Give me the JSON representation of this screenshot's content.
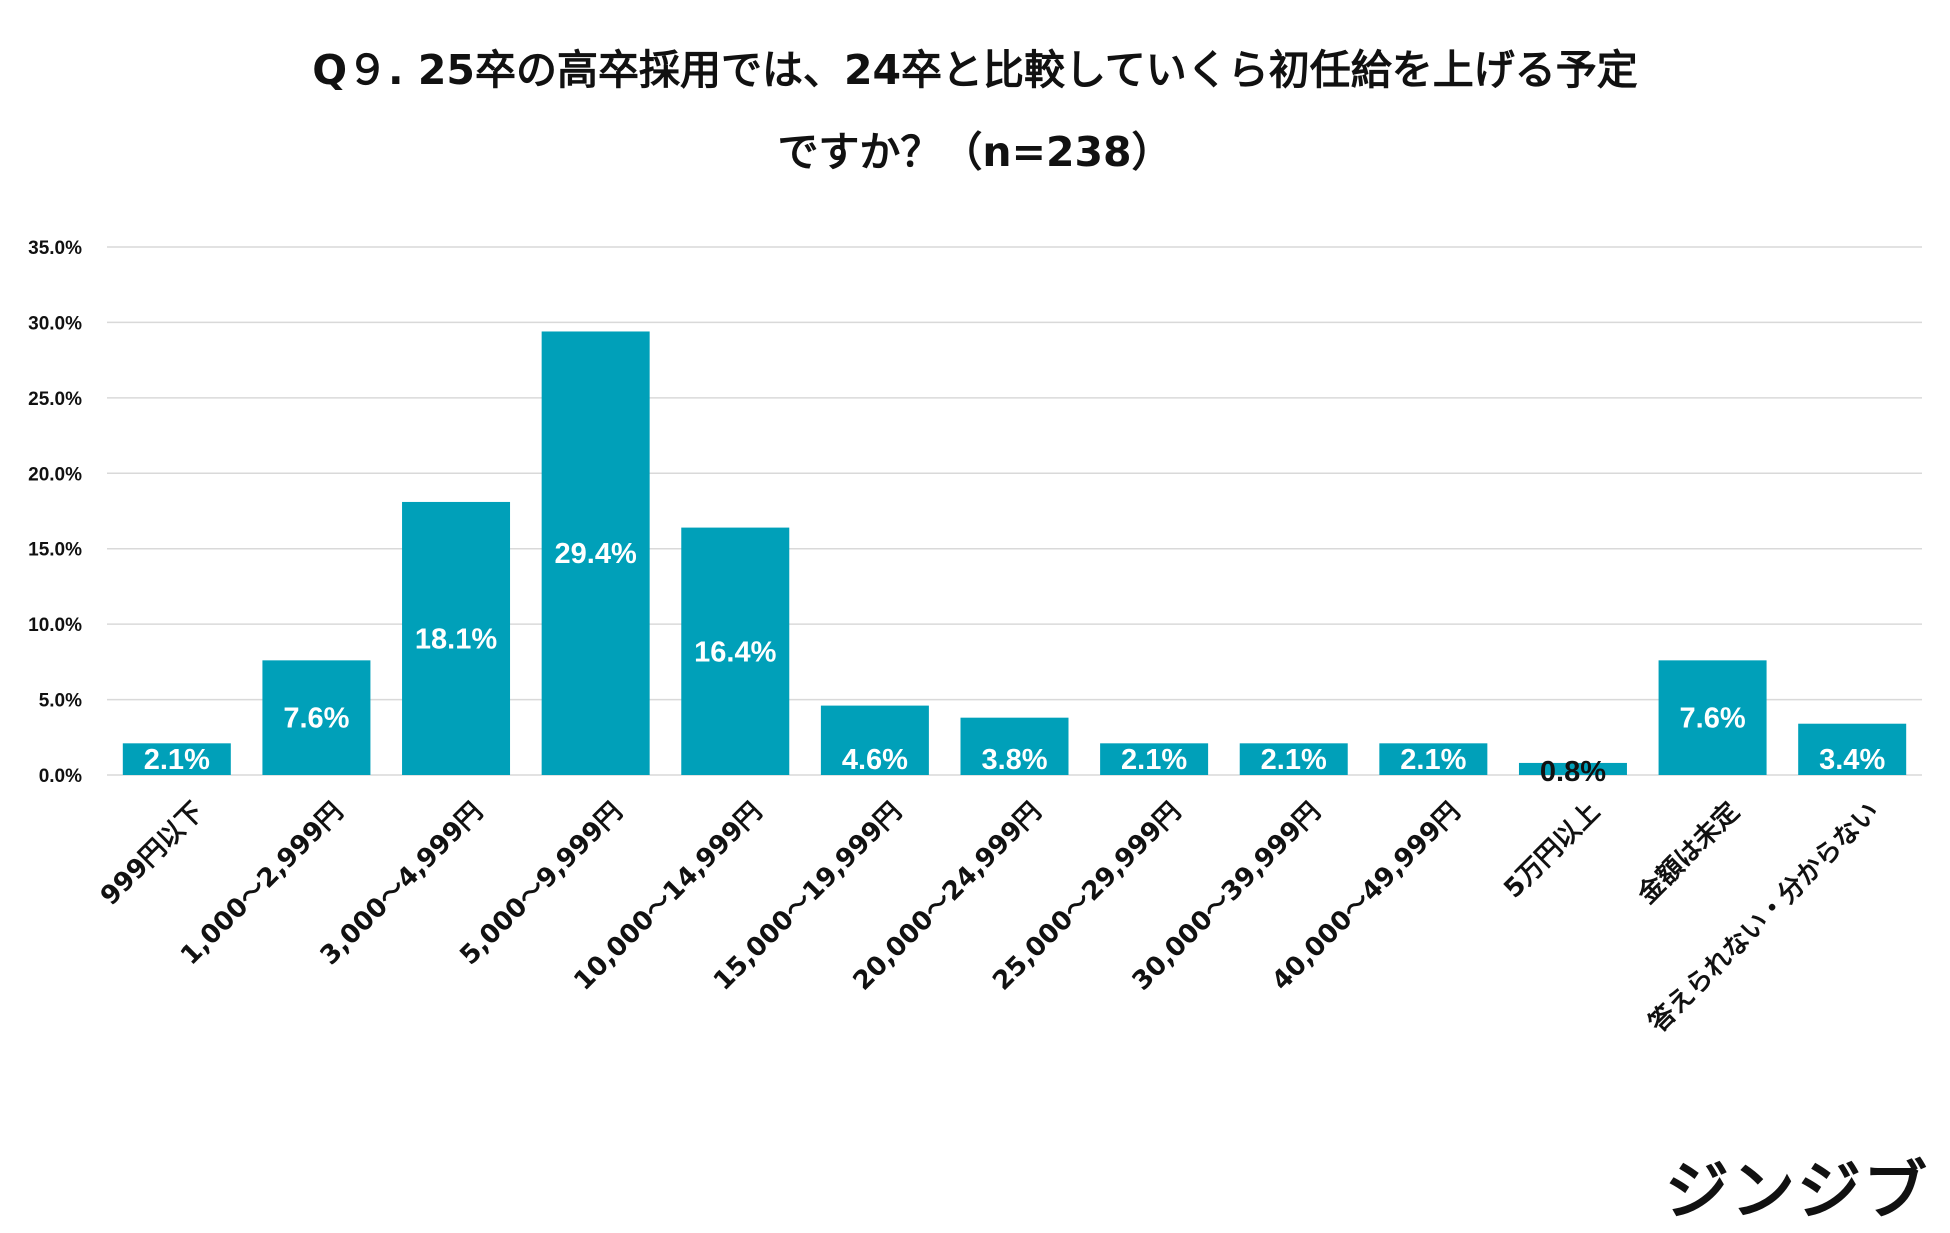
{
  "title_line1": "Q９. 25卒の高卒採用では、24卒と比較していくら初任給を上げる予定",
  "title_line2": "ですか？（n=238）",
  "logo_text": "ジンジブ",
  "colors": {
    "bar": "#00A0B9",
    "grid": "#D9D9D9",
    "label_inside": "#FFFFFF",
    "label_outside": "#111111"
  },
  "chart_data": {
    "type": "bar",
    "categories": [
      "999円以下",
      "1,000〜2,999円",
      "3,000〜4,999円",
      "5,000〜9,999円",
      "10,000〜14,999円",
      "15,000〜19,999円",
      "20,000〜24,999円",
      "25,000〜29,999円",
      "30,000〜39,999円",
      "40,000〜49,999円",
      "5万円以上",
      "金額は未定",
      "答えられない・分からない"
    ],
    "values": [
      2.1,
      7.6,
      18.1,
      29.4,
      16.4,
      4.6,
      3.8,
      2.1,
      2.1,
      2.1,
      0.8,
      7.6,
      3.4
    ],
    "value_labels": [
      "2.1%",
      "7.6%",
      "18.1%",
      "29.4%",
      "16.4%",
      "4.6%",
      "3.8%",
      "2.1%",
      "2.1%",
      "2.1%",
      "0.8%",
      "7.6%",
      "3.4%"
    ],
    "yticks": [
      0,
      5,
      10,
      15,
      20,
      25,
      30,
      35
    ],
    "ytick_labels": [
      "0.0%",
      "5.0%",
      "10.0%",
      "15.0%",
      "20.0%",
      "25.0%",
      "30.0%",
      "35.0%"
    ],
    "ylim": [
      0,
      35
    ],
    "grid": true,
    "legend": "none"
  }
}
